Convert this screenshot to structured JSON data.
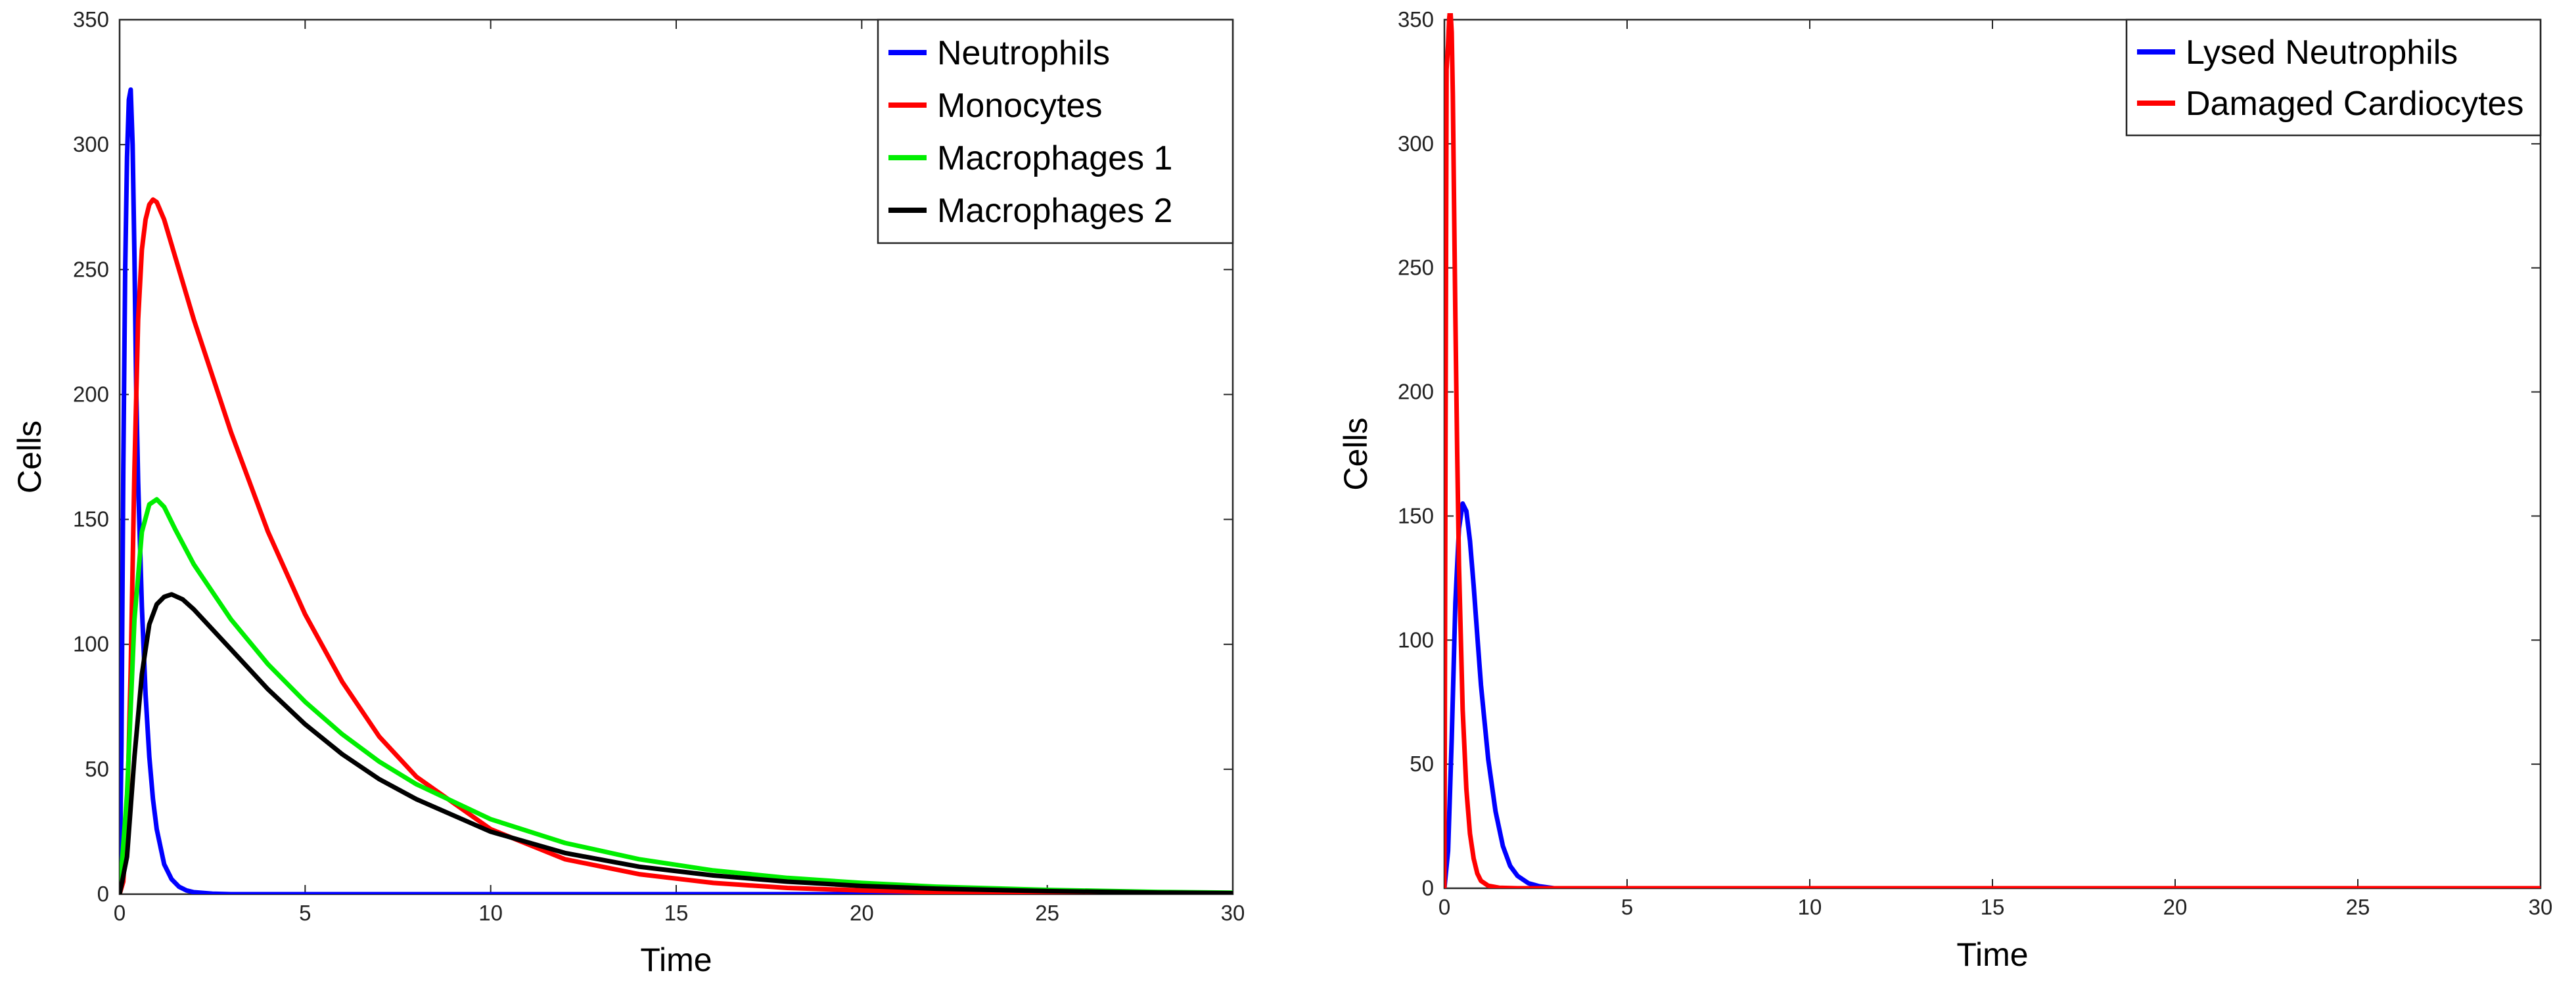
{
  "chart_data": [
    {
      "type": "line",
      "title": "",
      "xlabel": "Time",
      "ylabel": "Cells",
      "xlim": [
        0,
        30
      ],
      "ylim": [
        0,
        350
      ],
      "xticks": [
        0,
        5,
        10,
        15,
        20,
        25,
        30
      ],
      "yticks": [
        0,
        50,
        100,
        150,
        200,
        250,
        300,
        350
      ],
      "grid": false,
      "legend_position": "top-right",
      "series": [
        {
          "name": "Neutrophils",
          "color": "#0000ff",
          "x": [
            0,
            0.05,
            0.1,
            0.15,
            0.2,
            0.25,
            0.3,
            0.35,
            0.4,
            0.45,
            0.5,
            0.6,
            0.7,
            0.8,
            0.9,
            1.0,
            1.2,
            1.4,
            1.6,
            1.8,
            2.0,
            2.5,
            3.0,
            4.0,
            5.0,
            10,
            15,
            20,
            25,
            30
          ],
          "y": [
            0,
            60,
            170,
            250,
            295,
            318,
            322,
            300,
            255,
            200,
            165,
            115,
            80,
            55,
            38,
            26,
            12,
            6,
            3,
            1.5,
            0.8,
            0.2,
            0,
            0,
            0,
            0,
            0,
            0,
            0,
            0
          ]
        },
        {
          "name": "Monocytes",
          "color": "#ff0000",
          "x": [
            0,
            0.1,
            0.2,
            0.3,
            0.4,
            0.5,
            0.6,
            0.7,
            0.8,
            0.9,
            1.0,
            1.2,
            1.5,
            2,
            3,
            4,
            5,
            6,
            7,
            8,
            10,
            12,
            14,
            16,
            18,
            20,
            22,
            25,
            28,
            30
          ],
          "y": [
            0,
            5,
            30,
            90,
            170,
            230,
            258,
            270,
            276,
            278,
            277,
            270,
            255,
            230,
            185,
            145,
            112,
            85,
            63,
            47,
            26,
            14,
            8,
            4.5,
            2.5,
            1.5,
            0.8,
            0.3,
            0.1,
            0
          ]
        },
        {
          "name": "Macrophages 1",
          "color": "#00ee00",
          "x": [
            0,
            0.2,
            0.4,
            0.6,
            0.8,
            1.0,
            1.2,
            1.5,
            2,
            3,
            4,
            5,
            6,
            7,
            8,
            10,
            12,
            14,
            16,
            18,
            20,
            22,
            25,
            28,
            30
          ],
          "y": [
            0,
            40,
            110,
            145,
            156,
            158,
            155,
            146,
            132,
            110,
            92,
            77,
            64,
            53,
            44,
            30,
            20.5,
            14,
            9.5,
            6.5,
            4.5,
            3,
            1.7,
            0.9,
            0.6
          ]
        },
        {
          "name": "Macrophages 2",
          "color": "#000000",
          "x": [
            0,
            0.2,
            0.4,
            0.6,
            0.8,
            1.0,
            1.2,
            1.4,
            1.7,
            2,
            3,
            4,
            5,
            6,
            7,
            8,
            10,
            12,
            14,
            16,
            18,
            20,
            22,
            25,
            28,
            30
          ],
          "y": [
            0,
            15,
            55,
            88,
            108,
            116,
            119,
            120,
            118,
            114,
            98,
            82,
            68,
            56,
            46,
            38,
            25,
            16.5,
            11,
            7.5,
            5,
            3.3,
            2.2,
            1.2,
            0.6,
            0.4
          ]
        }
      ]
    },
    {
      "type": "line",
      "title": "",
      "xlabel": "Time",
      "ylabel": "Cells",
      "xlim": [
        0,
        30
      ],
      "ylim": [
        0,
        350
      ],
      "xticks": [
        0,
        5,
        10,
        15,
        20,
        25,
        30
      ],
      "yticks": [
        0,
        50,
        100,
        150,
        200,
        250,
        300,
        350
      ],
      "grid": false,
      "legend_position": "top-right",
      "series": [
        {
          "name": "Lysed Neutrophils",
          "color": "#0000ff",
          "x": [
            0,
            0.1,
            0.2,
            0.3,
            0.4,
            0.5,
            0.6,
            0.7,
            0.8,
            0.9,
            1.0,
            1.2,
            1.4,
            1.6,
            1.8,
            2.0,
            2.3,
            2.6,
            3.0,
            4.0,
            5.0,
            10,
            15,
            20,
            25,
            30
          ],
          "y": [
            0,
            15,
            60,
            115,
            145,
            155,
            152,
            140,
            122,
            102,
            82,
            52,
            31,
            17,
            9,
            5,
            2,
            0.8,
            0,
            0,
            0,
            0,
            0,
            0,
            0,
            0
          ]
        },
        {
          "name": "Damaged Cardiocytes",
          "color": "#ff0000",
          "x": [
            0,
            0.03,
            0.06,
            0.1,
            0.13,
            0.16,
            0.2,
            0.23,
            0.26,
            0.3,
            0.35,
            0.4,
            0.5,
            0.6,
            0.7,
            0.8,
            0.9,
            1.0,
            1.2,
            1.5,
            2.0,
            3.0,
            5.0,
            10,
            15,
            20,
            25,
            30
          ],
          "y": [
            0,
            180,
            330,
            340,
            350,
            355,
            345,
            320,
            280,
            230,
            175,
            130,
            72,
            40,
            22,
            12,
            6,
            3,
            1,
            0.2,
            0,
            0,
            0,
            0,
            0,
            0,
            0,
            0
          ]
        }
      ]
    }
  ]
}
